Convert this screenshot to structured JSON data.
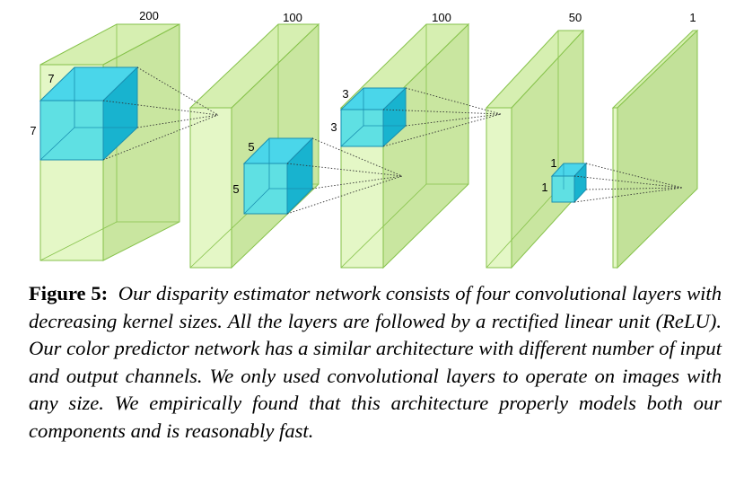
{
  "diagram": {
    "layer_channel_labels": [
      "200",
      "100",
      "100",
      "50",
      "1"
    ],
    "kernels": [
      {
        "height_label": "7",
        "width_label": "7"
      },
      {
        "height_label": "5",
        "width_label": "5"
      },
      {
        "height_label": "3",
        "width_label": "3"
      },
      {
        "height_label": "1",
        "width_label": "1"
      }
    ],
    "colors": {
      "layer_fill": "#e4f7c6",
      "layer_side": "#c9e6a0",
      "layer_top": "#d6efb1",
      "layer_edge": "#86c24a",
      "kernel_front": "#5fe0e3",
      "kernel_top": "#4ad6ea",
      "kernel_side": "#18b3cf",
      "kernel_edge": "#1a8fb0"
    }
  },
  "caption": {
    "figure_label": "Figure 5:",
    "text": "Our disparity estimator network consists of four convolutional layers with decreasing kernel sizes. All the layers are followed by a rectified linear unit (ReLU). Our color predictor network has a similar architecture with different number of input and output channels. We only used convolutional layers to operate on images with any size. We empirically found that this architecture properly models both our components and is reasonably fast."
  }
}
